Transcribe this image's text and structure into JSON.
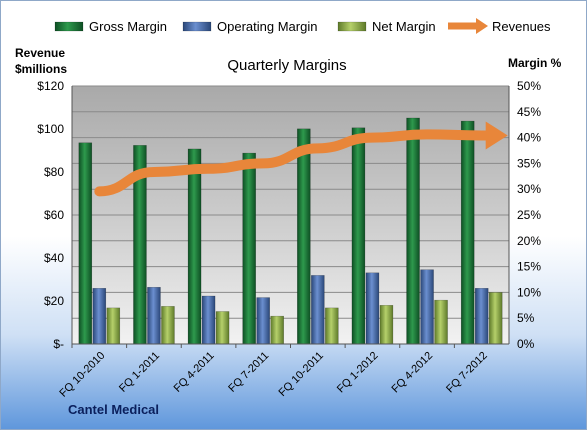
{
  "chart_data": {
    "type": "bar",
    "title": "Quarterly Margins",
    "company": "Cantel Medical",
    "y_left_label_lines": [
      "Revenue",
      "$millions"
    ],
    "y_right_label": "Margin %",
    "categories": [
      "FQ 10-2010",
      "FQ 1-2011",
      "FQ 4-2011",
      "FQ 7-2011",
      "FQ 10-2011",
      "FQ 1-2012",
      "FQ 4-2012",
      "FQ 7-2012"
    ],
    "series": [
      {
        "name": "Gross Margin",
        "axis": "right",
        "color": "#1f7a3c",
        "values": [
          39,
          38.5,
          37.8,
          37,
          41.7,
          41.9,
          43.8,
          43.2
        ]
      },
      {
        "name": "Operating Margin",
        "axis": "right",
        "color": "#4a6fb5",
        "values": [
          10.8,
          11,
          9.3,
          9,
          13.3,
          13.8,
          14.4,
          10.8
        ]
      },
      {
        "name": "Net Margin",
        "axis": "right",
        "color": "#9bbb59",
        "values": [
          7,
          7.3,
          6.3,
          5.4,
          7,
          7.5,
          8.5,
          10
        ]
      },
      {
        "name": "Revenues",
        "axis": "left",
        "type": "line",
        "color": "#e8863a",
        "values": [
          71,
          80,
          81.5,
          84,
          91,
          96,
          97.5,
          97
        ]
      }
    ],
    "y_left": {
      "min": 0,
      "max": 120,
      "step": 20,
      "tick_labels": [
        "$-",
        "$20",
        "$40",
        "$60",
        "$80",
        "$100",
        "$120"
      ]
    },
    "y_right": {
      "min": 0,
      "max": 50,
      "step": 5,
      "tick_labels": [
        "0%",
        "5%",
        "10%",
        "15%",
        "20%",
        "25%",
        "30%",
        "35%",
        "40%",
        "45%",
        "50%"
      ]
    },
    "legend_position": "top",
    "grid": true
  }
}
